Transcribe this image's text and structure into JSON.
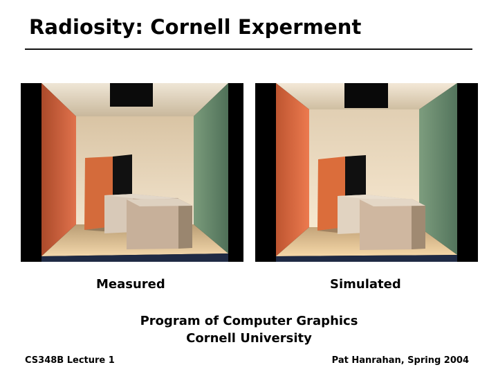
{
  "slide": {
    "title": "Radiosity: Cornell Experment",
    "images": [
      {
        "label": "Measured"
      },
      {
        "label": "Simulated"
      }
    ],
    "credit_lines": [
      "Program of Computer Graphics",
      "Cornell University"
    ],
    "footer_left": "CS348B Lecture 1",
    "footer_right": "Pat Hanrahan, Spring 2004"
  },
  "colors": {
    "background": "#ffffff",
    "text": "#000000",
    "rule": "#111111",
    "panel_frame": "#10182a",
    "red_wall": "#d86a3a",
    "green_wall": "#6a8f66",
    "back_wall": "#e6d2b3",
    "ceiling": "#e8dfc9",
    "floor": "#cfb28b"
  }
}
